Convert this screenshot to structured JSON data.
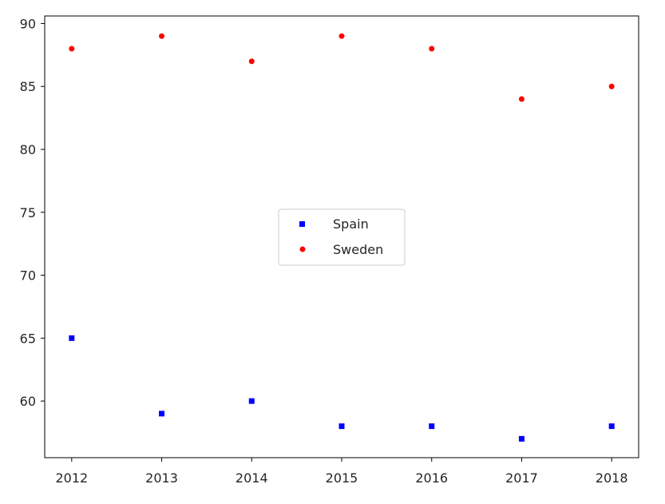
{
  "chart_data": {
    "type": "scatter",
    "title": "",
    "xlabel": "",
    "ylabel": "",
    "x": [
      2012,
      2013,
      2014,
      2015,
      2016,
      2017,
      2018
    ],
    "xlim": [
      2011.7,
      2018.3
    ],
    "ylim": [
      55.5,
      90.6
    ],
    "x_ticks": [
      "2012",
      "2013",
      "2014",
      "2015",
      "2016",
      "2017",
      "2018"
    ],
    "y_ticks": [
      "60",
      "65",
      "70",
      "75",
      "80",
      "85",
      "90"
    ],
    "grid": false,
    "legend_position": "center",
    "series": [
      {
        "name": "Spain",
        "marker": "square",
        "color": "#0000ff",
        "values": [
          65,
          59,
          60,
          58,
          58,
          57,
          58
        ]
      },
      {
        "name": "Sweden",
        "marker": "circle",
        "color": "#ff0000",
        "values": [
          88,
          89,
          87,
          89,
          88,
          84,
          85
        ]
      }
    ]
  }
}
